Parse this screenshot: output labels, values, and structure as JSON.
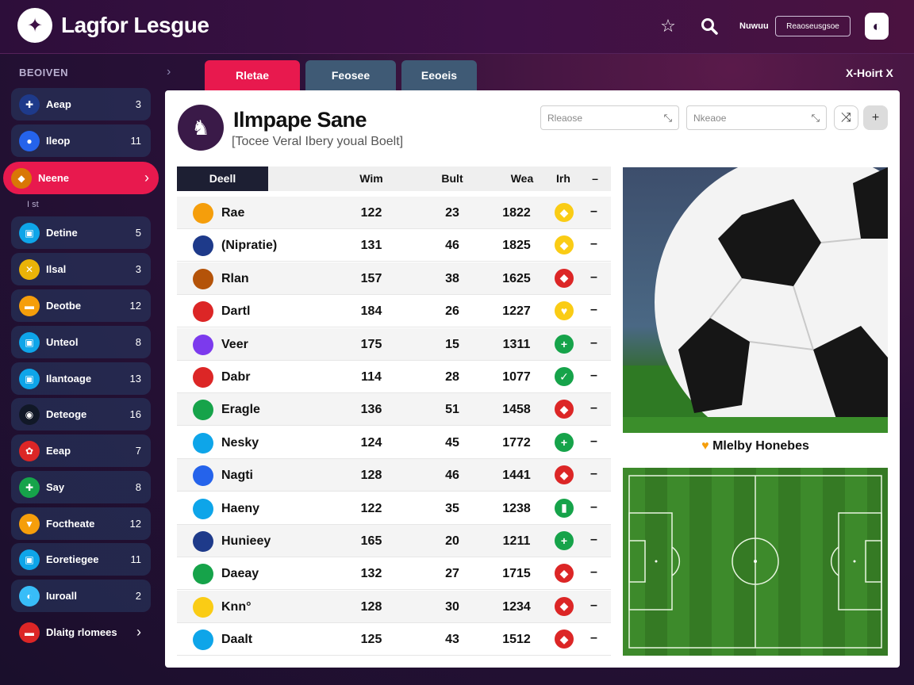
{
  "header": {
    "brand": "Lagfor Lesgue",
    "user_text": "Nuwuu",
    "search_label": "Reaoseusgsoe",
    "icons": [
      "star-icon",
      "search-icon",
      "avatar-icon"
    ]
  },
  "sidebar": {
    "heading": "BEOIVEN",
    "sub_label": "I st",
    "items": [
      {
        "label": "Aeap",
        "count": "3",
        "color": "#1e3a8a",
        "glyph": "✚"
      },
      {
        "label": "Ileop",
        "count": "11",
        "color": "#2563eb",
        "glyph": "●"
      },
      {
        "label": "Neene",
        "count": "",
        "color": "#d97706",
        "glyph": "◆",
        "active": true
      },
      {
        "label": "Detine",
        "count": "5",
        "color": "#0ea5e9",
        "glyph": "▣"
      },
      {
        "label": "Ilsal",
        "count": "3",
        "color": "#eab308",
        "glyph": "✕"
      },
      {
        "label": "Deotbe",
        "count": "12",
        "color": "#f59e0b",
        "glyph": "▬"
      },
      {
        "label": "Unteol",
        "count": "8",
        "color": "#0ea5e9",
        "glyph": "▣"
      },
      {
        "label": "Ilantoage",
        "count": "13",
        "color": "#0ea5e9",
        "glyph": "▣"
      },
      {
        "label": "Deteoge",
        "count": "16",
        "color": "#111827",
        "glyph": "◉"
      },
      {
        "label": "Eeap",
        "count": "7",
        "color": "#dc2626",
        "glyph": "✿"
      },
      {
        "label": "Say",
        "count": "8",
        "color": "#16a34a",
        "glyph": "✚"
      },
      {
        "label": "Foctheate",
        "count": "12",
        "color": "#f59e0b",
        "glyph": "▼"
      },
      {
        "label": "Eoretiegee",
        "count": "11",
        "color": "#0ea5e9",
        "glyph": "▣"
      },
      {
        "label": "Iuroall",
        "count": "2",
        "color": "#38bdf8",
        "glyph": "◐"
      },
      {
        "label": "Dlaitg rlomees",
        "count": "",
        "color": "#dc2626",
        "glyph": "▬",
        "chevron": true
      }
    ]
  },
  "tabs": [
    {
      "label": "Rletae",
      "color": "#e8194e"
    },
    {
      "label": "Feosee",
      "color": "#3f5a75"
    },
    {
      "label": "Eeoeis",
      "color": "#3f5a75"
    }
  ],
  "tab_right": "X-Hoirt X",
  "team": {
    "title": "Ilmpape Sane",
    "subtitle": "[Tocee Veral Ibery youal Boelt]"
  },
  "filters": [
    {
      "placeholder": "Rleaose"
    },
    {
      "placeholder": "Nkeaoe"
    }
  ],
  "table": {
    "headers": [
      "Deell",
      "Wim",
      "Bult",
      "Wea",
      "Irh",
      "–"
    ],
    "rows": [
      {
        "name": "Rae",
        "a": "122",
        "b": "23",
        "c": "1822",
        "flag": "#f59e0b",
        "badge": "#facc15",
        "badge_glyph": "◆"
      },
      {
        "name": "(Nipratie)",
        "a": "131",
        "b": "46",
        "c": "1825",
        "flag": "#1e3a8a",
        "badge": "#facc15",
        "badge_glyph": "◆"
      },
      {
        "name": "Rlan",
        "a": "157",
        "b": "38",
        "c": "1625",
        "flag": "#b45309",
        "badge": "#dc2626",
        "badge_glyph": "◆"
      },
      {
        "name": "Dartl",
        "a": "184",
        "b": "26",
        "c": "1227",
        "flag": "#dc2626",
        "badge": "#facc15",
        "badge_glyph": "♥"
      },
      {
        "name": "Veer",
        "a": "175",
        "b": "15",
        "c": "1311",
        "flag": "#7c3aed",
        "badge": "#16a34a",
        "badge_glyph": "+"
      },
      {
        "name": "Dabr",
        "a": "114",
        "b": "28",
        "c": "1077",
        "flag": "#dc2626",
        "badge": "#16a34a",
        "badge_glyph": "✓"
      },
      {
        "name": "Eragle",
        "a": "136",
        "b": "51",
        "c": "1458",
        "flag": "#16a34a",
        "badge": "#dc2626",
        "badge_glyph": "◆"
      },
      {
        "name": "Nesky",
        "a": "124",
        "b": "45",
        "c": "1772",
        "flag": "#0ea5e9",
        "badge": "#16a34a",
        "badge_glyph": "+"
      },
      {
        "name": "Nagti",
        "a": "128",
        "b": "46",
        "c": "1441",
        "flag": "#2563eb",
        "badge": "#dc2626",
        "badge_glyph": "◆"
      },
      {
        "name": "Haeny",
        "a": "122",
        "b": "35",
        "c": "1238",
        "flag": "#0ea5e9",
        "badge": "#16a34a",
        "badge_glyph": "▮"
      },
      {
        "name": "Hunieey",
        "a": "165",
        "b": "20",
        "c": "1211",
        "flag": "#1e3a8a",
        "badge": "#16a34a",
        "badge_glyph": "+"
      },
      {
        "name": "Daeay",
        "a": "132",
        "b": "27",
        "c": "1715",
        "flag": "#16a34a",
        "badge": "#dc2626",
        "badge_glyph": "◆"
      },
      {
        "name": "Knn°",
        "a": "128",
        "b": "30",
        "c": "1234",
        "flag": "#facc15",
        "badge": "#dc2626",
        "badge_glyph": "◆"
      },
      {
        "name": "Daalt",
        "a": "125",
        "b": "43",
        "c": "1512",
        "flag": "#0ea5e9",
        "badge": "#dc2626",
        "badge_glyph": "◆"
      }
    ]
  },
  "media": {
    "caption": "Mlelby Honebes",
    "caption_icon": "heart-icon"
  }
}
